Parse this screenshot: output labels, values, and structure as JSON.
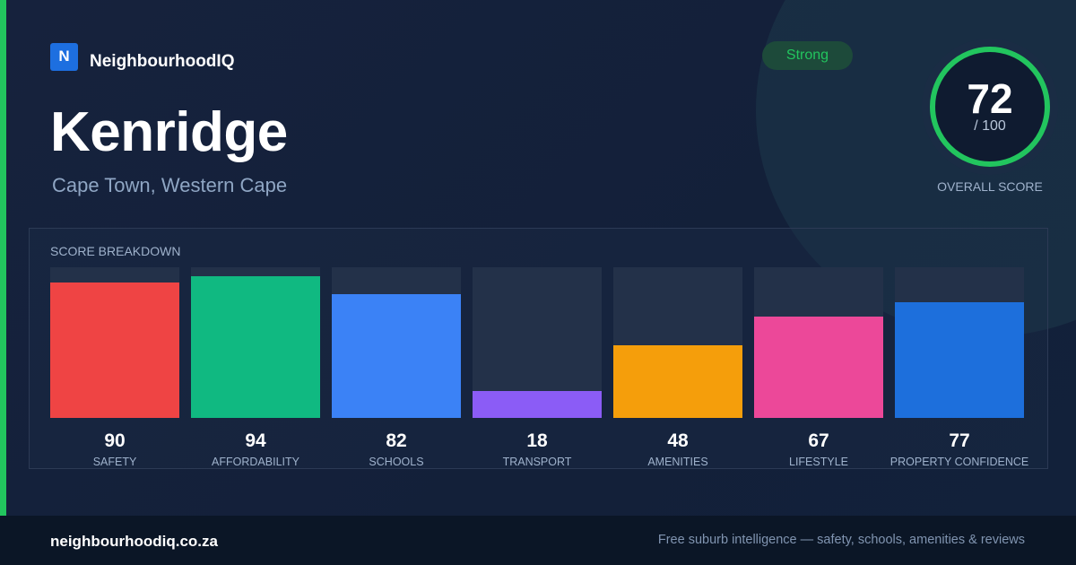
{
  "brand": {
    "logo_letter": "N",
    "name": "NeighbourhoodIQ"
  },
  "header": {
    "title": "Kenridge",
    "subtitle": "Cape Town, Western Cape"
  },
  "badge": {
    "label": "Strong"
  },
  "overall": {
    "value": 72,
    "max_label": "/ 100",
    "label": "OVERALL SCORE",
    "ring_color": "#22c55e"
  },
  "panel": {
    "title": "SCORE BREAKDOWN"
  },
  "chart_data": {
    "type": "bar",
    "title": "SCORE BREAKDOWN",
    "categories": [
      "SAFETY",
      "AFFORDABILITY",
      "SCHOOLS",
      "TRANSPORT",
      "AMENITIES",
      "LIFESTYLE",
      "PROPERTY CONFIDENCE"
    ],
    "values": [
      90,
      94,
      82,
      18,
      48,
      67,
      77
    ],
    "colors": [
      "#ef4444",
      "#10b981",
      "#3b82f6",
      "#8b5cf6",
      "#f59e0b",
      "#ec4899",
      "#1d6fdc"
    ],
    "ylim": [
      0,
      100
    ],
    "grid": false
  },
  "footer": {
    "url": "neighbourhoodiq.co.za",
    "tagline": "Free suburb intelligence — safety, schools, amenities & reviews"
  },
  "colors": {
    "accent": "#22c55e",
    "background": "#13213a",
    "footer": "#0b1626"
  }
}
